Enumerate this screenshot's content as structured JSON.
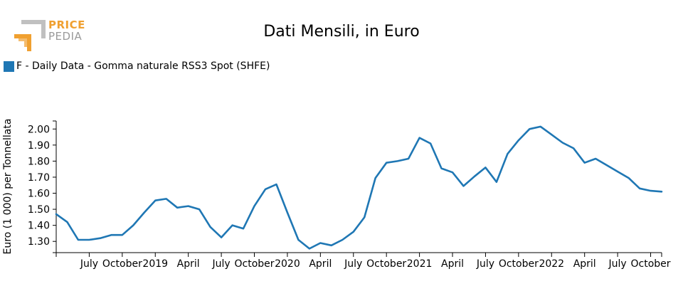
{
  "logo": {
    "word1": "PRICE",
    "word2": "PEDIA"
  },
  "chart_data": {
    "type": "line",
    "title": "Dati Mensili, in Euro",
    "xlabel": "",
    "ylabel": "Euro (1 000) per Tonnellata",
    "ylim": [
      1.23,
      2.05
    ],
    "y_ticks": [
      1.3,
      1.4,
      1.5,
      1.6,
      1.7,
      1.8,
      1.9,
      2.0
    ],
    "y_tick_labels": [
      "1.30",
      "1.40",
      "1.50",
      "1.60",
      "1.70",
      "1.80",
      "1.90",
      "2.00"
    ],
    "x_range": [
      "2018-04",
      "2022-11"
    ],
    "x_ticks": [
      {
        "x": "2018-07",
        "label": "July"
      },
      {
        "x": "2018-10",
        "label": "October"
      },
      {
        "x": "2019-01",
        "label": "2019"
      },
      {
        "x": "2019-04",
        "label": "April"
      },
      {
        "x": "2019-07",
        "label": "July"
      },
      {
        "x": "2019-10",
        "label": "October"
      },
      {
        "x": "2020-01",
        "label": "2020"
      },
      {
        "x": "2020-04",
        "label": "April"
      },
      {
        "x": "2020-07",
        "label": "July"
      },
      {
        "x": "2020-10",
        "label": "October"
      },
      {
        "x": "2021-01",
        "label": "2021"
      },
      {
        "x": "2021-04",
        "label": "April"
      },
      {
        "x": "2021-07",
        "label": "July"
      },
      {
        "x": "2021-10",
        "label": "October"
      },
      {
        "x": "2022-01",
        "label": "2022"
      },
      {
        "x": "2022-04",
        "label": "April"
      },
      {
        "x": "2022-07",
        "label": "July"
      },
      {
        "x": "2022-10",
        "label": "October"
      }
    ],
    "grid": false,
    "legend_position": "top-left",
    "series": [
      {
        "name": "F - Daily Data - Gomma naturale RSS3 Spot (SHFE)",
        "color": "#1f77b4",
        "x": [
          "2018-04",
          "2018-05",
          "2018-06",
          "2018-07",
          "2018-08",
          "2018-09",
          "2018-10",
          "2018-11",
          "2018-12",
          "2019-01",
          "2019-02",
          "2019-03",
          "2019-04",
          "2019-05",
          "2019-06",
          "2019-07",
          "2019-08",
          "2019-09",
          "2019-10",
          "2019-11",
          "2019-12",
          "2020-01",
          "2020-02",
          "2020-03",
          "2020-04",
          "2020-05",
          "2020-06",
          "2020-07",
          "2020-08",
          "2020-09",
          "2020-10",
          "2020-11",
          "2020-12",
          "2021-01",
          "2021-02",
          "2021-03",
          "2021-04",
          "2021-05",
          "2021-06",
          "2021-07",
          "2021-08",
          "2021-09",
          "2021-10",
          "2021-11",
          "2021-12",
          "2022-01",
          "2022-02",
          "2022-03",
          "2022-04",
          "2022-05",
          "2022-06",
          "2022-07",
          "2022-08",
          "2022-09",
          "2022-10",
          "2022-11"
        ],
        "values": [
          1.47,
          1.42,
          1.31,
          1.31,
          1.32,
          1.34,
          1.34,
          1.4,
          1.48,
          1.555,
          1.565,
          1.51,
          1.52,
          1.5,
          1.39,
          1.325,
          1.4,
          1.38,
          1.52,
          1.625,
          1.655,
          1.48,
          1.31,
          1.255,
          1.29,
          1.275,
          1.31,
          1.36,
          1.45,
          1.695,
          1.79,
          1.8,
          1.815,
          1.945,
          1.91,
          1.755,
          1.73,
          1.645,
          1.705,
          1.76,
          1.67,
          1.845,
          1.93,
          2.0,
          2.015,
          1.965,
          1.915,
          1.88,
          1.79,
          1.815,
          1.775,
          1.735,
          1.695,
          1.63,
          1.615,
          1.61
        ]
      }
    ]
  }
}
